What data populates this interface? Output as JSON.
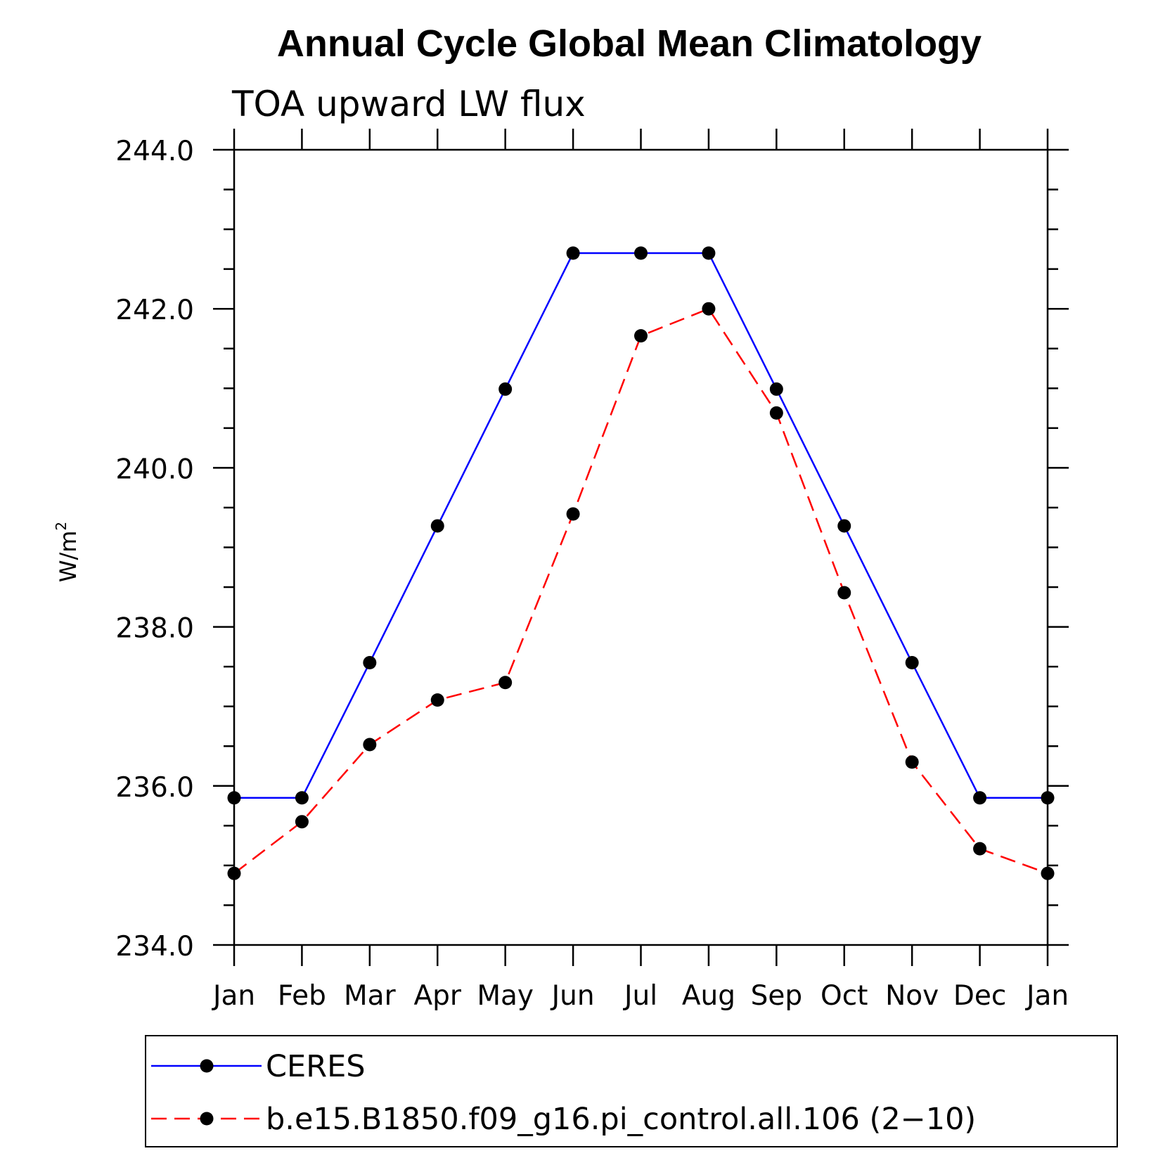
{
  "chart_data": {
    "type": "line",
    "title": "Annual Cycle Global Mean Climatology",
    "subtitle": "TOA upward LW flux",
    "ylabel": "W/m",
    "ylabel_sup": "2",
    "ylim": [
      234.0,
      244.0
    ],
    "yticks": [
      "244.0",
      "242.0",
      "240.0",
      "238.0",
      "236.0",
      "234.0"
    ],
    "categories": [
      "Jan",
      "Feb",
      "Mar",
      "Apr",
      "May",
      "Jun",
      "Jul",
      "Aug",
      "Sep",
      "Oct",
      "Nov",
      "Dec",
      "Jan"
    ],
    "series": [
      {
        "name": "CERES",
        "color": "#0000ff",
        "style": "solid",
        "values": [
          235.85,
          235.85,
          237.55,
          239.27,
          240.99,
          242.7,
          242.7,
          242.7,
          240.99,
          239.27,
          237.55,
          235.85,
          235.85
        ]
      },
      {
        "name": "b.e15.B1850.f09_g16.pi_control.all.106 (2−10)",
        "color": "#ff0000",
        "style": "dashed",
        "values": [
          234.9,
          235.55,
          236.52,
          237.08,
          237.3,
          239.42,
          241.66,
          242.0,
          240.69,
          238.43,
          236.3,
          235.21,
          234.9
        ]
      }
    ],
    "legend_position": "bottom",
    "grid": false
  }
}
